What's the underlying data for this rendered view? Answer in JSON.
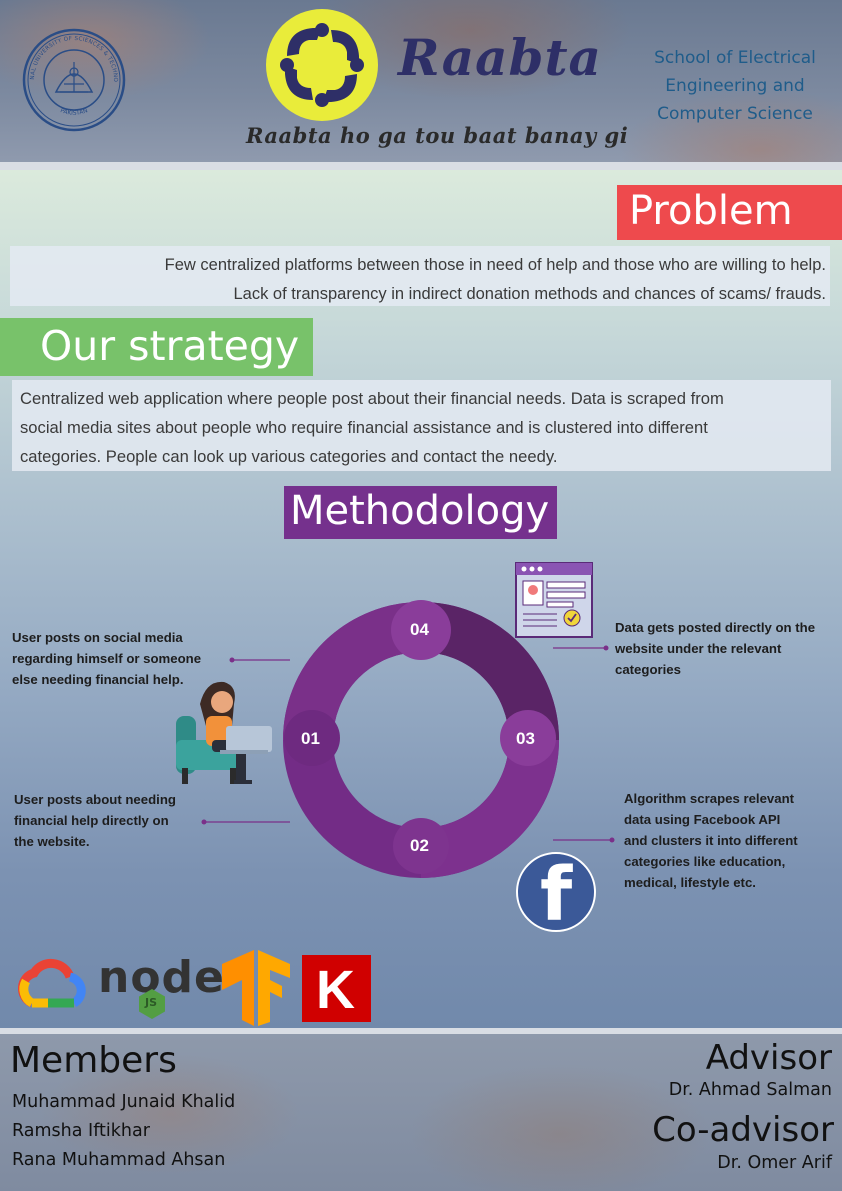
{
  "header": {
    "brand": "Raabta",
    "tagline": "Raabta ho ga tou baat banay gi",
    "school_lines": [
      "School of Electrical",
      "Engineering and",
      "Computer Science"
    ],
    "seal": {
      "top_text": "NATIONAL UNIVERSITY OF SCIENCES & TECHNOLOGY",
      "bottom_text": "PAKISTAN"
    }
  },
  "problem": {
    "title": "Problem",
    "lines": [
      "Few centralized platforms between those in need of help and those who are willing to help.",
      "Lack of transparency in indirect donation methods and chances of scams/ frauds."
    ]
  },
  "strategy": {
    "title": "Our strategy",
    "lines": [
      "Centralized web application where people post about their financial needs. Data is scraped from",
      "social media sites about people who require financial assistance and is clustered into different",
      "categories. People can look up various categories and contact the needy."
    ]
  },
  "methodology": {
    "title": "Methodology",
    "steps": [
      {
        "num": "01",
        "lines": [
          "User posts on social media",
          "regarding himself or someone",
          "else needing financial help."
        ]
      },
      {
        "num": "02",
        "lines": [
          "User posts about needing",
          "financial help directly on",
          "the website."
        ]
      },
      {
        "num": "03",
        "lines": [
          "Algorithm scrapes relevant",
          "data using Facebook API",
          "and clusters it into different",
          "categories like education,",
          "medical, lifestyle etc."
        ]
      },
      {
        "num": "04",
        "lines": [
          "Data gets posted directly on the",
          "website under the relevant",
          "categories"
        ]
      }
    ],
    "facebook_glyph": "f"
  },
  "tech": {
    "icons": [
      "google-cloud-icon",
      "nodejs-icon",
      "tensorflow-icon",
      "keras-icon"
    ],
    "node_text": "node",
    "node_badge": "JS",
    "keras_letter": "K"
  },
  "members": {
    "title": "Members",
    "names": [
      "Muhammad Junaid Khalid",
      "Ramsha Iftikhar",
      "Rana Muhammad Ahsan"
    ]
  },
  "advisor": {
    "title": "Advisor",
    "name": "Dr. Ahmad Salman",
    "co_title": "Co-advisor",
    "co_name": "Dr. Omer Arif"
  },
  "colors": {
    "problem_red": "#ee4a4d",
    "strategy_green": "#78c26a",
    "methodology_purple": "#75318d",
    "ring_dark": "#5a2466",
    "ring_main": "#732c86",
    "ring_light": "#8a3d9a",
    "brand_navy": "#2e2f67",
    "logo_yellow": "#e9ec3a",
    "school_blue": "#1f5c8a"
  }
}
